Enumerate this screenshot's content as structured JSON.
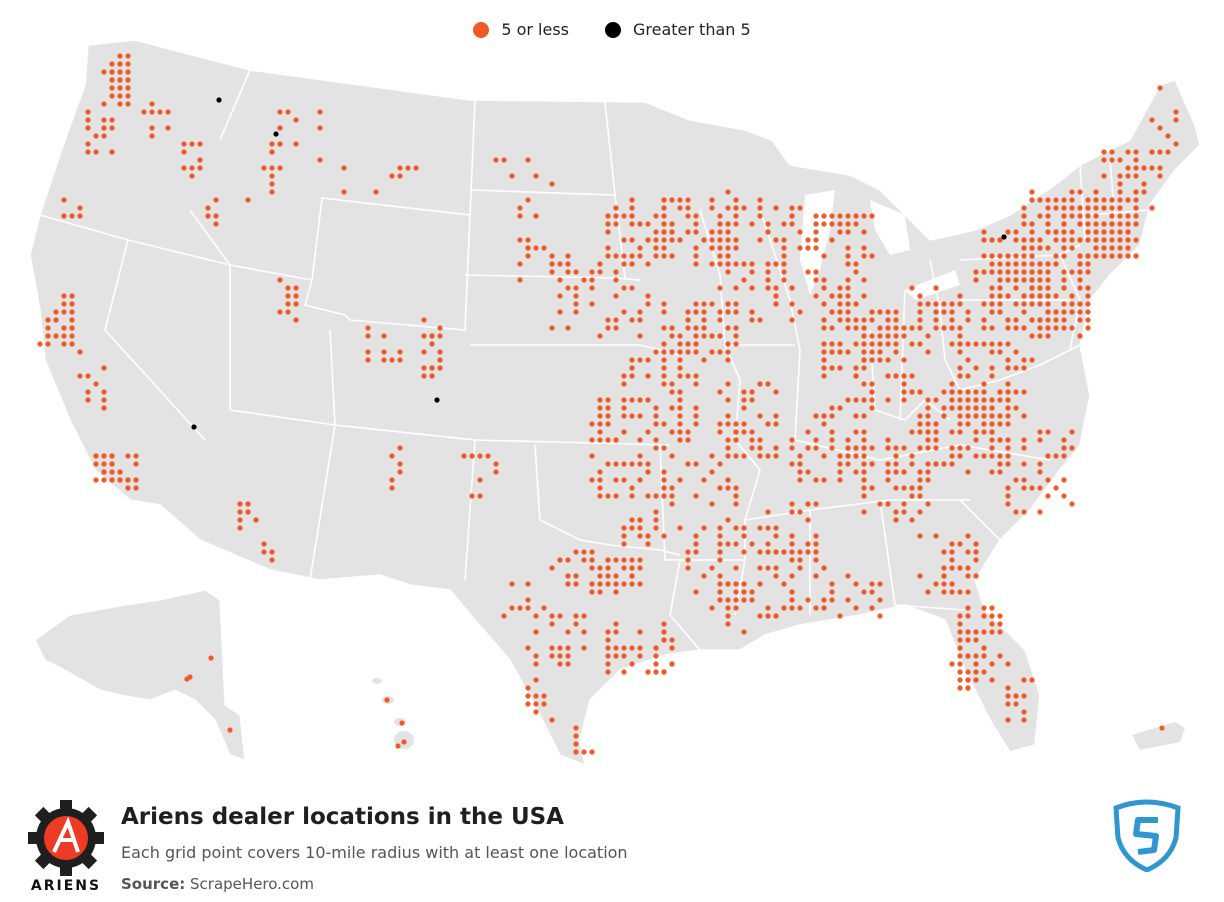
{
  "legend": {
    "small_label": "5 or less",
    "large_label": "Greater than 5",
    "small_color": "#f05a28",
    "large_color": "#000000"
  },
  "footer": {
    "title": "Ariens dealer locations in the USA",
    "subtitle": "Each grid point covers 10-mile radius with at least one location",
    "source_label": "Source:",
    "source_value": "ScrapeHero.com",
    "brand": "ARIENS"
  },
  "colors": {
    "land": "#e3e3e3",
    "borders": "#ffffff",
    "brand_red": "#ee3b24",
    "scrapehero_blue": "#2f96d1"
  },
  "icons": [
    "ariens-gear-logo-icon",
    "scrapehero-shield-logo-icon"
  ]
}
